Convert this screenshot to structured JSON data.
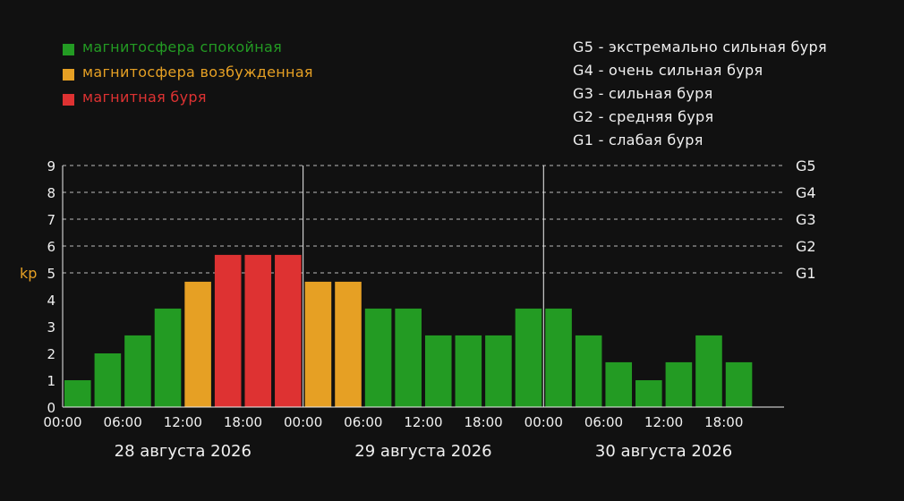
{
  "chart_data": {
    "type": "bar",
    "ylabel": "kp",
    "ylim": [
      0,
      9
    ],
    "yticks": [
      "0",
      "1",
      "2",
      "3",
      "4",
      "5",
      "6",
      "7",
      "8",
      "9"
    ],
    "g_levels": [
      {
        "label": "G1",
        "value": 5
      },
      {
        "label": "G2",
        "value": 6
      },
      {
        "label": "G3",
        "value": 7
      },
      {
        "label": "G4",
        "value": 8
      },
      {
        "label": "G5",
        "value": 9
      }
    ],
    "legend": [
      {
        "label": "магнитосфера спокойная",
        "color": "#239b23"
      },
      {
        "label": "магнитосфера возбужденная",
        "color": "#e6a024"
      },
      {
        "label": "магнитная буря",
        "color": "#de3232"
      }
    ],
    "g_scale": [
      "G5 - экстремально сильная буря",
      "G4 - очень сильная буря",
      "G3 - сильная буря",
      "G2 - средняя буря",
      "G1 - слабая буря"
    ],
    "days": [
      "28 августа 2026",
      "29 августа 2026",
      "30 августа 2026"
    ],
    "xtick_labels": [
      "00:00",
      "06:00",
      "12:00",
      "18:00",
      "00:00",
      "06:00",
      "12:00",
      "18:00",
      "00:00",
      "06:00",
      "12:00",
      "18:00"
    ],
    "interval_hours": 3,
    "values": [
      1,
      2,
      2.67,
      3.67,
      4.67,
      5.67,
      5.67,
      5.67,
      4.67,
      4.67,
      3.67,
      3.67,
      2.67,
      2.67,
      2.67,
      3.67,
      3.67,
      2.67,
      1.67,
      1,
      1.67,
      2.67,
      1.67
    ],
    "levels": [
      "calm",
      "calm",
      "calm",
      "calm",
      "excited",
      "storm",
      "storm",
      "storm",
      "excited",
      "excited",
      "calm",
      "calm",
      "calm",
      "calm",
      "calm",
      "calm",
      "calm",
      "calm",
      "calm",
      "calm",
      "calm",
      "calm",
      "calm"
    ],
    "colors": {
      "calm": "#239b23",
      "excited": "#e6a024",
      "storm": "#de3232"
    },
    "grid": true
  }
}
